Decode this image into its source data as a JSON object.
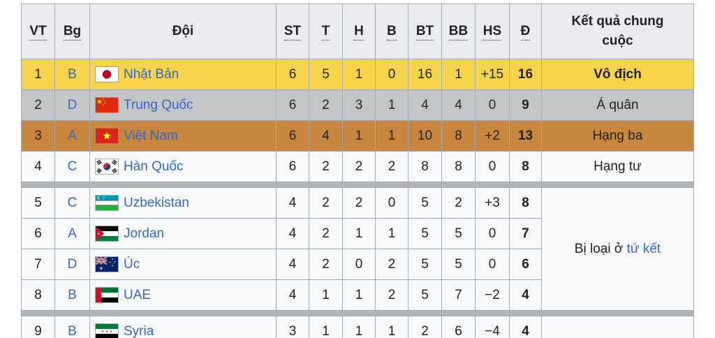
{
  "table": {
    "columns": [
      {
        "label": "VT",
        "abbr": true
      },
      {
        "label": "Bg",
        "abbr": true
      },
      {
        "label": "Đội",
        "abbr": false
      },
      {
        "label": "ST",
        "abbr": true
      },
      {
        "label": "T",
        "abbr": true
      },
      {
        "label": "H",
        "abbr": true
      },
      {
        "label": "B",
        "abbr": true
      },
      {
        "label": "BT",
        "abbr": true
      },
      {
        "label": "BB",
        "abbr": true
      },
      {
        "label": "HS",
        "abbr": true
      },
      {
        "label": "Đ",
        "abbr": true
      },
      {
        "label": "Kết quả chung cuộc",
        "abbr": false
      }
    ],
    "rows": [
      {
        "vt": "1",
        "bg": "B",
        "team": "Nhật Bản",
        "flag": "japan",
        "st": "6",
        "t": "5",
        "h": "1",
        "b": "0",
        "bt": "16",
        "bb": "1",
        "hs": "+15",
        "d": "16",
        "result": "Vô địch",
        "result_bold": true,
        "highlight": "gold"
      },
      {
        "vt": "2",
        "bg": "D",
        "team": "Trung Quốc",
        "flag": "china",
        "st": "6",
        "t": "2",
        "h": "3",
        "b": "1",
        "bt": "4",
        "bb": "4",
        "hs": "0",
        "d": "9",
        "result": "Á quân",
        "result_bold": false,
        "highlight": "silver"
      },
      {
        "vt": "3",
        "bg": "A",
        "team": "Việt Nam",
        "flag": "vietnam",
        "st": "6",
        "t": "4",
        "h": "1",
        "b": "1",
        "bt": "10",
        "bb": "8",
        "hs": "+2",
        "d": "13",
        "result": "Hạng ba",
        "result_bold": false,
        "highlight": "bronze"
      },
      {
        "vt": "4",
        "bg": "C",
        "team": "Hàn Quốc",
        "flag": "south-korea",
        "st": "6",
        "t": "2",
        "h": "2",
        "b": "2",
        "bt": "8",
        "bb": "8",
        "hs": "0",
        "d": "8",
        "result": "Hạng tư",
        "result_bold": false,
        "highlight": "none"
      },
      {
        "vt": "5",
        "bg": "C",
        "team": "Uzbekistan",
        "flag": "uzbekistan",
        "st": "4",
        "t": "2",
        "h": "2",
        "b": "0",
        "bt": "5",
        "bb": "2",
        "hs": "+3",
        "d": "8",
        "highlight": "none"
      },
      {
        "vt": "6",
        "bg": "A",
        "team": "Jordan",
        "flag": "jordan",
        "st": "4",
        "t": "2",
        "h": "1",
        "b": "1",
        "bt": "5",
        "bb": "5",
        "hs": "0",
        "d": "7",
        "highlight": "none"
      },
      {
        "vt": "7",
        "bg": "D",
        "team": "Úc",
        "flag": "australia",
        "st": "4",
        "t": "2",
        "h": "0",
        "b": "2",
        "bt": "5",
        "bb": "5",
        "hs": "0",
        "d": "6",
        "highlight": "none"
      },
      {
        "vt": "8",
        "bg": "B",
        "team": "UAE",
        "flag": "uae",
        "st": "4",
        "t": "1",
        "h": "1",
        "b": "2",
        "bt": "5",
        "bb": "7",
        "hs": "−2",
        "d": "4",
        "highlight": "none"
      },
      {
        "vt": "9",
        "bg": "B",
        "team": "Syria",
        "flag": "syria",
        "st": "3",
        "t": "1",
        "h": "1",
        "b": "1",
        "bt": "2",
        "bb": "6",
        "hs": "−4",
        "d": "4",
        "highlight": "none"
      }
    ],
    "qf_note": {
      "text_prefix": "Bị loại ở ",
      "link_text": "tứ kết"
    }
  },
  "colors": {
    "gold": "#F5D44B",
    "silver": "#C4C5C6",
    "bronze": "#C8863F",
    "header_bg": "#EAECF0",
    "row_bg": "#F8F9FA",
    "border": "#A2A9B1",
    "separator": "#B0B3B7",
    "link": "#3366CC",
    "text": "#202122"
  }
}
